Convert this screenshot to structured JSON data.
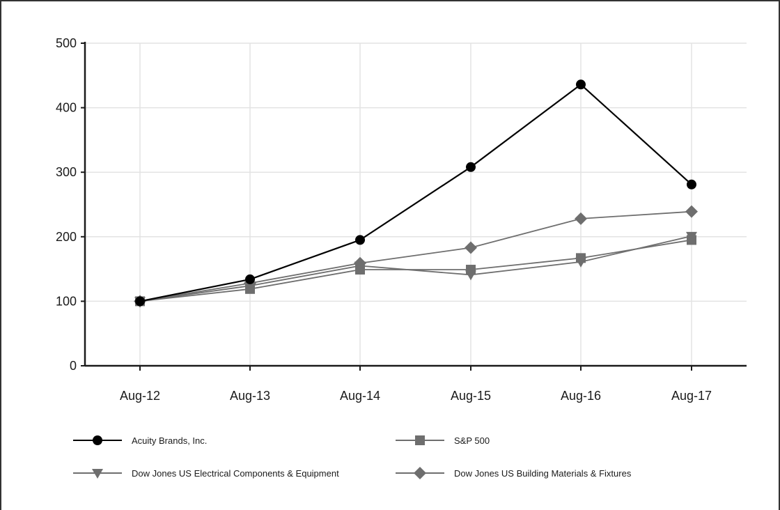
{
  "chart_data": {
    "type": "line",
    "categories": [
      "Aug-12",
      "Aug-13",
      "Aug-14",
      "Aug-15",
      "Aug-16",
      "Aug-17"
    ],
    "ylim": [
      0,
      500
    ],
    "yticks": [
      0,
      100,
      200,
      300,
      400,
      500
    ],
    "grid": true,
    "legend_position": "bottom",
    "series": [
      {
        "name": "Acuity Brands, Inc.",
        "marker": "circle",
        "color": "#000000",
        "values": [
          100,
          134,
          195,
          308,
          436,
          281
        ]
      },
      {
        "name": "S&P 500",
        "marker": "square",
        "color": "#6e6e6e",
        "values": [
          100,
          119,
          149,
          149,
          167,
          195
        ]
      },
      {
        "name": "Dow Jones US Electrical Components & Equipment",
        "marker": "triangle-down",
        "color": "#6e6e6e",
        "values": [
          100,
          124,
          155,
          141,
          161,
          201
        ]
      },
      {
        "name": "Dow Jones US Building Materials & Fixtures",
        "marker": "diamond",
        "color": "#6e6e6e",
        "values": [
          100,
          128,
          159,
          183,
          228,
          239
        ]
      }
    ]
  }
}
